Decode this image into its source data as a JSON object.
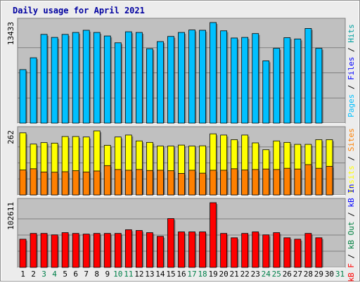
{
  "chart_data": {
    "type": "bar",
    "title": "Daily usage for April 2021",
    "categories": [
      "1",
      "2",
      "3",
      "4",
      "5",
      "6",
      "7",
      "8",
      "9",
      "10",
      "11",
      "12",
      "13",
      "14",
      "15",
      "16",
      "17",
      "18",
      "19",
      "20",
      "21",
      "22",
      "23",
      "24",
      "25",
      "26",
      "27",
      "28",
      "29",
      "30",
      "31"
    ],
    "weekend_days": [
      "3",
      "4",
      "10",
      "11",
      "17",
      "18",
      "24",
      "25",
      "31"
    ],
    "colors": {
      "title": "#0000a0",
      "panel_bg": "#c0c0c0",
      "frame_bg": "#ececec",
      "hits": "#00a0a0",
      "files": "#0000ff",
      "pages": "#00c0ff",
      "visits": "#ffff00",
      "sites": "#ff8000",
      "kbin": "#008040",
      "kbout": "#0000ff",
      "kbf": "#ff0000",
      "weekend_label": "#00804a",
      "weekday_label": "#000000"
    },
    "panels": [
      {
        "name": "hits-files-pages",
        "max_label": "13433",
        "ylim": [
          0,
          13433
        ],
        "right_label_parts": [
          {
            "text": "Pages",
            "color": "#00c0ff"
          },
          {
            "text": " / ",
            "color": "#000000"
          },
          {
            "text": "Files",
            "color": "#0000ff"
          },
          {
            "text": " / ",
            "color": "#000000"
          },
          {
            "text": "Hits",
            "color": "#00a0a0"
          }
        ],
        "series": [
          {
            "name": "Pages",
            "color": "#00c0ff",
            "values": [
              7150,
              8730,
              11850,
              11450,
              11850,
              12110,
              12400,
              12110,
              11640,
              10730,
              12200,
              12110,
              9940,
              10890,
              11580,
              12110,
              12440,
              12400,
              13433,
              12330,
              11370,
              11450,
              11960,
              8320,
              9990,
              11410,
              11240,
              12640,
              9990,
              null,
              null
            ]
          }
        ]
      },
      {
        "name": "visits-sites",
        "max_label": "262",
        "ylim": [
          0,
          262
        ],
        "right_label_parts": [
          {
            "text": "Visits",
            "color": "#ffff00"
          },
          {
            "text": " / ",
            "color": "#000000"
          },
          {
            "text": "Sites",
            "color": "#ff8000"
          }
        ],
        "series": [
          {
            "name": "Visits",
            "color": "#ffff00",
            "values": [
              254,
              208,
              214,
              212,
              239,
              239,
              237,
              262,
              203,
              237,
              245,
              221,
              215,
              200,
              200,
              204,
              200,
              201,
              250,
              245,
              226,
              245,
              213,
              185,
              221,
              215,
              207,
              207,
              226,
              226,
              null
            ]
          },
          {
            "name": "Sites",
            "color": "#ff8000",
            "values": [
              102,
              107,
              94,
              93,
              95,
              99,
              94,
              98,
              120,
              104,
              101,
              104,
              100,
              101,
              99,
              88,
              101,
              89,
              101,
              101,
              107,
              102,
              104,
              106,
              104,
              109,
              106,
              124,
              109,
              117,
              null
            ]
          }
        ]
      },
      {
        "name": "kbin-kbout-kbf",
        "max_label": "102611",
        "ylim": [
          0,
          102611
        ],
        "right_label_parts": [
          {
            "text": "kB F",
            "color": "#ff0000"
          },
          {
            "text": " / ",
            "color": "#000000"
          },
          {
            "text": "kB Out",
            "color": "#008040"
          },
          {
            "text": " / ",
            "color": "#000000"
          },
          {
            "text": "kB In",
            "color": "#0000ff"
          }
        ],
        "series": [
          {
            "name": "kB F",
            "color": "#ff0000",
            "values": [
              44700,
              53900,
              53900,
              51600,
              55100,
              53900,
              52800,
              53900,
              53900,
              53900,
              59700,
              58500,
              55100,
              49300,
              77400,
              56300,
              56300,
              56300,
              102611,
              53900,
              47000,
              53900,
              56300,
              51600,
              55100,
              47000,
              44700,
              53900,
              47000,
              null,
              null
            ]
          }
        ]
      }
    ]
  }
}
